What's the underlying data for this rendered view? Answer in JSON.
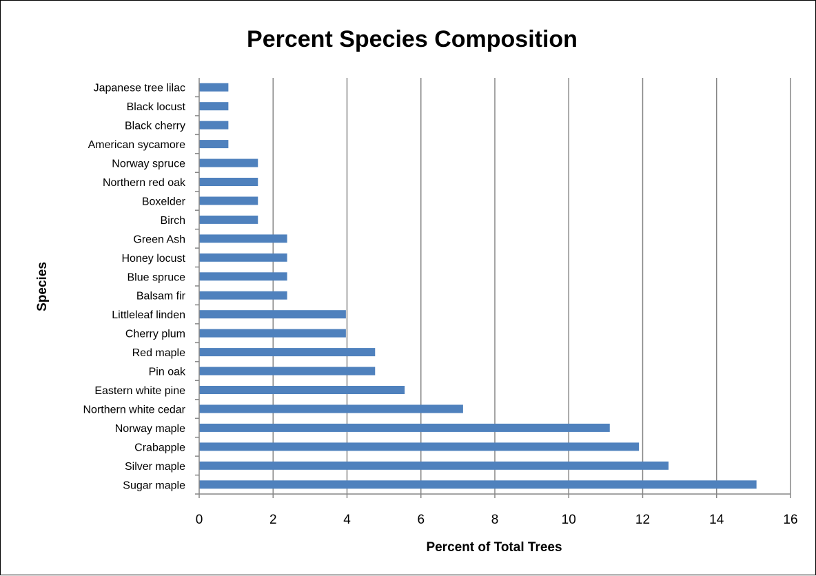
{
  "chart_data": {
    "type": "bar",
    "orientation": "horizontal",
    "title": "Percent Species Composition",
    "xlabel": "Percent of Total Trees",
    "ylabel": "Species",
    "xlim": [
      0,
      16
    ],
    "x_ticks": [
      0,
      2,
      4,
      6,
      8,
      10,
      12,
      14,
      16
    ],
    "grid": "vertical major gridlines",
    "legend": "none",
    "bar_color": "#4f81bd",
    "categories": [
      "Sugar maple",
      "Silver maple",
      "Crabapple",
      "Norway maple",
      "Northern white cedar",
      "Eastern white pine",
      "Pin oak",
      "Red maple",
      "Cherry plum",
      "Littleleaf linden",
      "Balsam fir",
      "Blue spruce",
      "Honey locust",
      "Green Ash",
      "Birch",
      "Boxelder",
      "Northern red oak",
      "Norway spruce",
      "American sycamore",
      "Black cherry",
      "Black locust",
      "Japanese tree lilac"
    ],
    "values": [
      15.08,
      12.7,
      11.9,
      11.11,
      7.14,
      5.56,
      4.76,
      4.76,
      3.97,
      3.97,
      2.38,
      2.38,
      2.38,
      2.38,
      1.59,
      1.59,
      1.59,
      1.59,
      0.79,
      0.79,
      0.79,
      0.79
    ]
  }
}
